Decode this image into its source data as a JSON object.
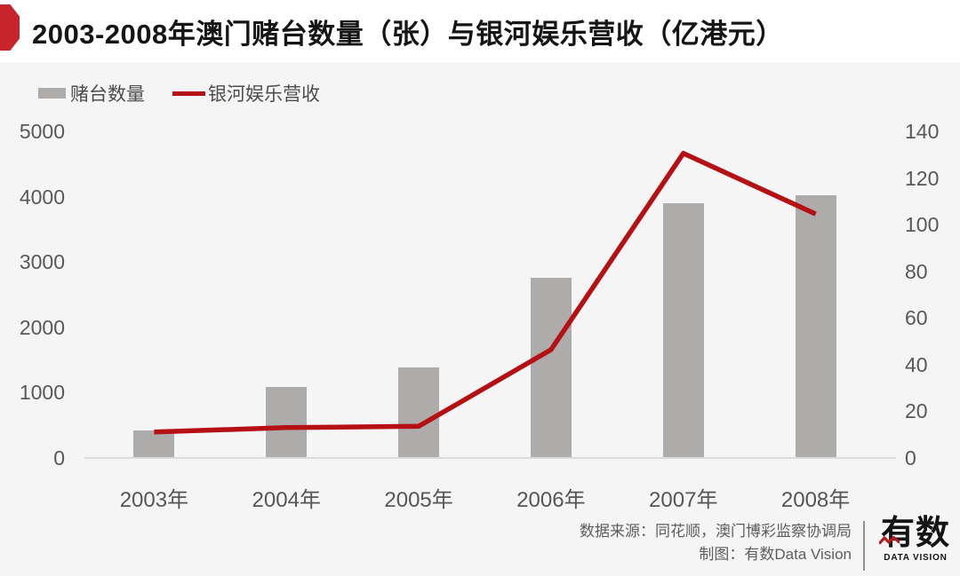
{
  "title": "2003-2008年澳门赌台数量（张）与银河娱乐营收（亿港元）",
  "colors": {
    "bar": "#aeabab",
    "line": "#b51114",
    "badge": "#c8242b",
    "title_band": "#ffffff",
    "background": "#f6f5f5",
    "axis_text": "#585858"
  },
  "legend": {
    "items": [
      {
        "label": "赌台数量",
        "type": "bar"
      },
      {
        "label": "银河娱乐营收",
        "type": "line"
      }
    ]
  },
  "chart_data": {
    "type": "bar+line combo",
    "categories": [
      "2003年",
      "2004年",
      "2005年",
      "2006年",
      "2007年",
      "2008年"
    ],
    "series": [
      {
        "name": "赌台数量",
        "type": "bar",
        "axis": "left",
        "values": [
          424,
          1092,
          1388,
          2762,
          3900,
          4017
        ]
      },
      {
        "name": "银河娱乐营收",
        "type": "line",
        "axis": "right",
        "values": [
          11.1,
          13,
          13.6,
          46.4,
          130.6,
          104.6
        ]
      }
    ],
    "left_axis": {
      "ticks": [
        5000,
        4000,
        3000,
        2000,
        1000,
        0
      ],
      "range": [
        0,
        5000
      ]
    },
    "right_axis": {
      "ticks": [
        140,
        120,
        100,
        80,
        60,
        40,
        20,
        0
      ],
      "range": [
        0,
        140
      ]
    },
    "title": "2003-2008年澳门赌台数量（张）与银河娱乐营收（亿港元）",
    "grid": false,
    "legend_position": "top-left"
  },
  "footer": {
    "source_line": "数据来源：同花顺，澳门博彩监察协调局",
    "credit_line": "制图：有数Data Vision",
    "logo_text": "有数",
    "logo_subtext": "DATA VISION"
  }
}
